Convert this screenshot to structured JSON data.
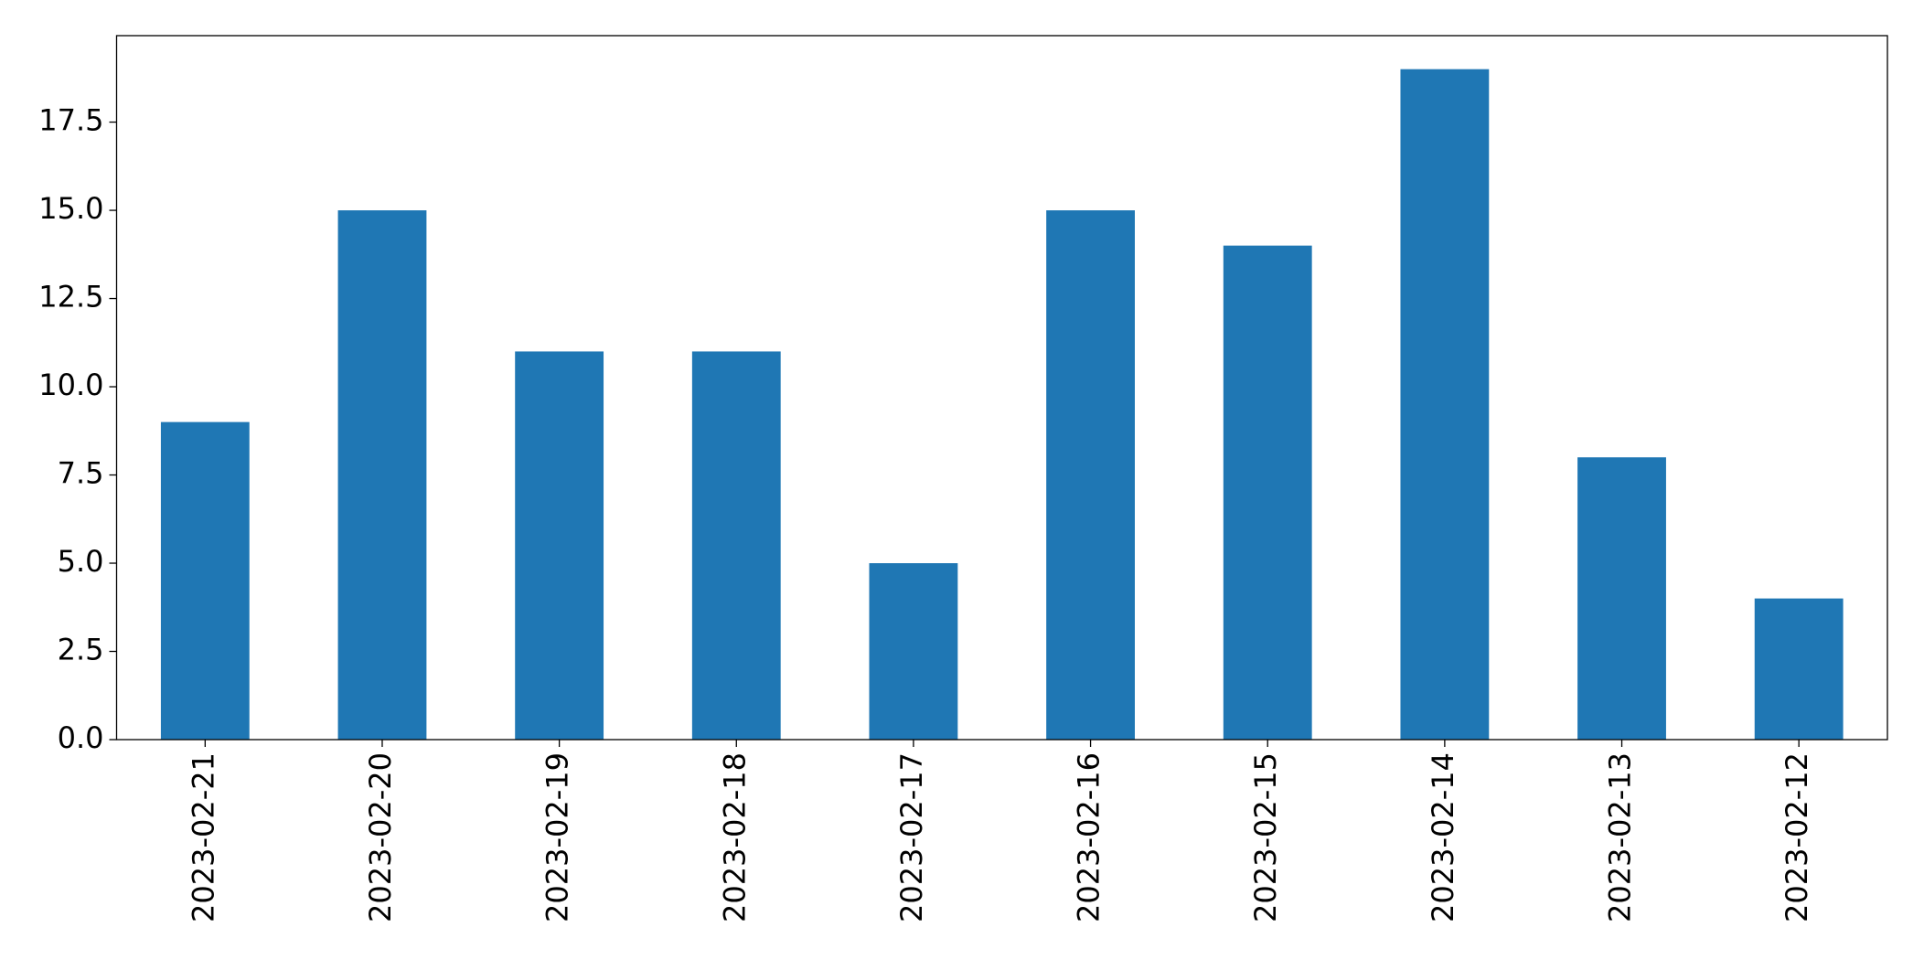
{
  "chart_data": {
    "type": "bar",
    "categories": [
      "2023-02-21",
      "2023-02-20",
      "2023-02-19",
      "2023-02-18",
      "2023-02-17",
      "2023-02-16",
      "2023-02-15",
      "2023-02-14",
      "2023-02-13",
      "2023-02-12"
    ],
    "values": [
      9,
      15,
      11,
      11,
      5,
      15,
      14,
      19,
      8,
      4
    ],
    "color": "#1f77b4",
    "ylim": [
      0,
      19.95
    ],
    "yticks": [
      {
        "value": 0,
        "label": "0.0"
      },
      2.5,
      {
        "value": 5,
        "label": "5.0"
      },
      7.5,
      {
        "value": 10,
        "label": "10.0"
      },
      12.5,
      {
        "value": 15,
        "label": "15.0"
      },
      17.5
    ],
    "grid": false
  }
}
